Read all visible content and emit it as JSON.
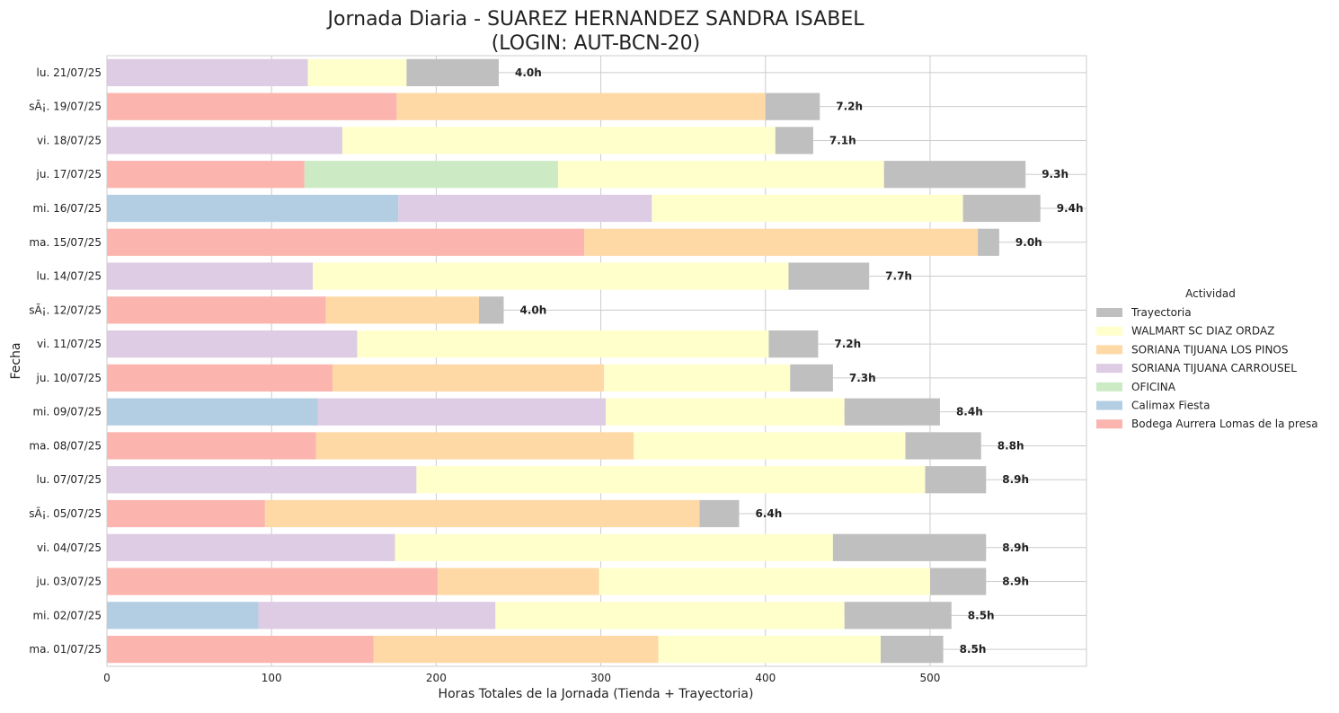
{
  "chart_data": {
    "type": "bar",
    "orientation": "horizontal",
    "stacked": true,
    "title_line1": "Jornada Diaria - SUAREZ HERNANDEZ SANDRA ISABEL",
    "title_line2": "(LOGIN: AUT-BCN-20)",
    "xlabel": "Horas Totales de la Jornada (Tienda + Trayectoria)",
    "ylabel": "Fecha",
    "xlim": [
      0,
      595
    ],
    "xticks": [
      0,
      100,
      200,
      300,
      400,
      500
    ],
    "grid": true,
    "legend_title": "Actividad",
    "legend_placement": "center-right outside",
    "categories": [
      "lu. 21/07/25",
      "sÃ¡. 19/07/25",
      "vi. 18/07/25",
      "ju. 17/07/25",
      "mi. 16/07/25",
      "ma. 15/07/25",
      "lu. 14/07/25",
      "sÃ¡. 12/07/25",
      "vi. 11/07/25",
      "ju. 10/07/25",
      "mi. 09/07/25",
      "ma. 08/07/25",
      "lu. 07/07/25",
      "sÃ¡. 05/07/25",
      "vi. 04/07/25",
      "ju. 03/07/25",
      "mi. 02/07/25",
      "ma. 01/07/25"
    ],
    "stack_order": [
      "Bodega Aurrera Lomas de la presa",
      "Calimax Fiesta",
      "OFICINA",
      "SORIANA TIJUANA CARROUSEL",
      "SORIANA TIJUANA LOS PINOS",
      "WALMART SC DIAZ ORDAZ",
      "Trayectoria"
    ],
    "legend_order": [
      "Trayectoria",
      "WALMART SC DIAZ ORDAZ",
      "SORIANA TIJUANA LOS PINOS",
      "SORIANA TIJUANA CARROUSEL",
      "OFICINA",
      "Calimax Fiesta",
      "Bodega Aurrera Lomas de la presa"
    ],
    "series": [
      {
        "name": "Bodega Aurrera Lomas de la presa",
        "color": "#fbb4ae",
        "values": [
          0,
          176,
          0,
          120,
          0,
          290,
          0,
          133,
          0,
          137,
          0,
          127,
          0,
          96,
          0,
          201,
          0,
          162
        ]
      },
      {
        "name": "Calimax Fiesta",
        "color": "#b3cde3",
        "values": [
          0,
          0,
          0,
          0,
          177,
          0,
          0,
          0,
          0,
          0,
          128,
          0,
          0,
          0,
          0,
          0,
          92,
          0
        ]
      },
      {
        "name": "OFICINA",
        "color": "#ccebc5",
        "values": [
          0,
          0,
          0,
          154,
          0,
          0,
          0,
          0,
          0,
          0,
          0,
          0,
          0,
          0,
          0,
          0,
          0,
          0
        ]
      },
      {
        "name": "SORIANA TIJUANA CARROUSEL",
        "color": "#decbe4",
        "values": [
          122,
          0,
          143,
          0,
          154,
          0,
          125,
          0,
          152,
          0,
          175,
          0,
          188,
          0,
          175,
          0,
          144,
          0
        ]
      },
      {
        "name": "SORIANA TIJUANA LOS PINOS",
        "color": "#fed9a6",
        "values": [
          0,
          224,
          0,
          0,
          0,
          239,
          0,
          93,
          0,
          165,
          0,
          193,
          0,
          264,
          0,
          98,
          0,
          173
        ]
      },
      {
        "name": "WALMART SC DIAZ ORDAZ",
        "color": "#ffffcc",
        "values": [
          60,
          0,
          263,
          198,
          189,
          0,
          289,
          0,
          250,
          113,
          145,
          165,
          309,
          0,
          266,
          201,
          212,
          135
        ]
      },
      {
        "name": "Trayectoria",
        "color": "#bfbfbf",
        "values": [
          56,
          33,
          23,
          86,
          47,
          13,
          49,
          15,
          30,
          26,
          58,
          46,
          37,
          24,
          93,
          34,
          65,
          38
        ]
      }
    ],
    "data_labels": [
      "4.0h",
      "7.2h",
      "7.1h",
      "9.3h",
      "9.4h",
      "9.0h",
      "7.7h",
      "4.0h",
      "7.2h",
      "7.3h",
      "8.4h",
      "8.8h",
      "8.9h",
      "6.4h",
      "8.9h",
      "8.9h",
      "8.5h",
      "8.5h"
    ]
  }
}
